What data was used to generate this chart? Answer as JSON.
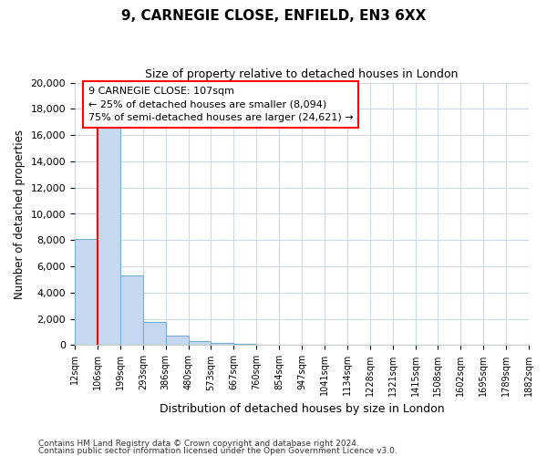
{
  "title1": "9, CARNEGIE CLOSE, ENFIELD, EN3 6XX",
  "title2": "Size of property relative to detached houses in London",
  "xlabel": "Distribution of detached houses by size in London",
  "ylabel": "Number of detached properties",
  "property_label": "9 CARNEGIE CLOSE: 107sqm",
  "percentile25_label": "← 25% of detached houses are smaller (8,094)",
  "percentile75_label": "75% of semi-detached houses are larger (24,621) →",
  "bin_edges": [
    12,
    106,
    199,
    293,
    386,
    480,
    573,
    667,
    760,
    854,
    947,
    1041,
    1134,
    1228,
    1321,
    1415,
    1508,
    1602,
    1695,
    1789,
    1882
  ],
  "bin_labels": [
    "12sqm",
    "106sqm",
    "199sqm",
    "293sqm",
    "386sqm",
    "480sqm",
    "573sqm",
    "667sqm",
    "760sqm",
    "854sqm",
    "947sqm",
    "1041sqm",
    "1134sqm",
    "1228sqm",
    "1321sqm",
    "1415sqm",
    "1508sqm",
    "1602sqm",
    "1695sqm",
    "1789sqm",
    "1882sqm"
  ],
  "counts": [
    8094,
    16600,
    5300,
    1800,
    700,
    300,
    180,
    100,
    50,
    0,
    0,
    0,
    0,
    0,
    0,
    0,
    0,
    0,
    0,
    0
  ],
  "bar_color": "#c5d8f0",
  "bar_edge_color": "#7aadd4",
  "vline_color": "red",
  "ylim": [
    0,
    20000
  ],
  "yticks": [
    0,
    2000,
    4000,
    6000,
    8000,
    10000,
    12000,
    14000,
    16000,
    18000,
    20000
  ],
  "footer1": "Contains HM Land Registry data © Crown copyright and database right 2024.",
  "footer2": "Contains public sector information licensed under the Open Government Licence v3.0."
}
